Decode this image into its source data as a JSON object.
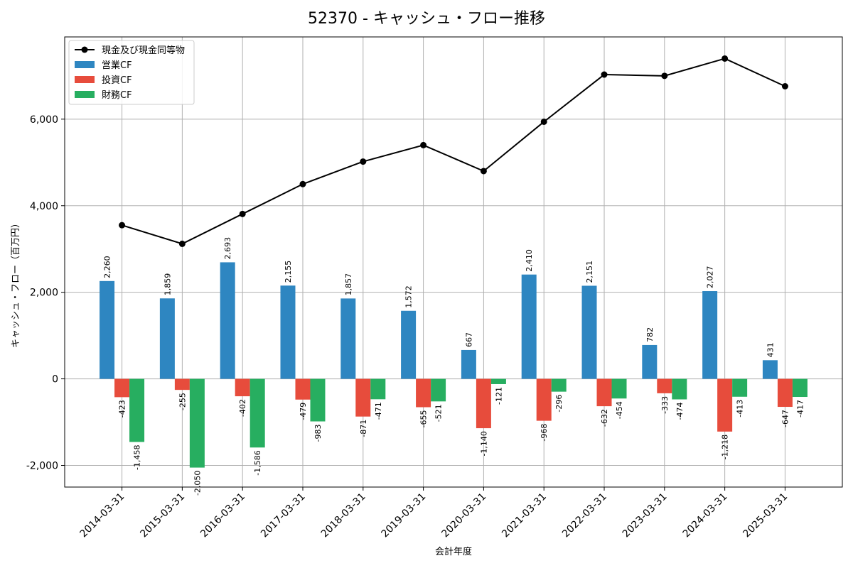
{
  "chart_data": {
    "type": "bar",
    "title": "52370 - キャッシュ・フロー推移",
    "xlabel": "会計年度",
    "ylabel": "キャッシュ・フロー（百万円）",
    "ylim": [
      -2500,
      7900
    ],
    "yticks": [
      -2000,
      0,
      2000,
      4000,
      6000
    ],
    "ytick_labels": [
      "-2,000",
      "0",
      "2,000",
      "4,000",
      "6,000"
    ],
    "grid": true,
    "legend_position": "top-left",
    "categories": [
      "2014-03-31",
      "2015-03-31",
      "2016-03-31",
      "2017-03-31",
      "2018-03-31",
      "2019-03-31",
      "2020-03-31",
      "2021-03-31",
      "2022-03-31",
      "2023-03-31",
      "2024-03-31",
      "2025-03-31"
    ],
    "series": [
      {
        "name": "営業CF",
        "kind": "bar",
        "color": "#2e86c1",
        "values": [
          2260,
          1859,
          2693,
          2155,
          1857,
          1572,
          667,
          2410,
          2151,
          782,
          2027,
          431
        ],
        "labels": [
          "2,260",
          "1,859",
          "2,693",
          "2,155",
          "1,857",
          "1,572",
          "667",
          "2,410",
          "2,151",
          "782",
          "2,027",
          "431"
        ]
      },
      {
        "name": "投資CF",
        "kind": "bar",
        "color": "#e74c3c",
        "values": [
          -423,
          -255,
          -402,
          -479,
          -871,
          -655,
          -1140,
          -968,
          -632,
          -333,
          -1218,
          -647
        ],
        "labels": [
          "-423",
          "-255",
          "-402",
          "-479",
          "-871",
          "-655",
          "-1,140",
          "-968",
          "-632",
          "-333",
          "-1,218",
          "-647"
        ]
      },
      {
        "name": "財務CF",
        "kind": "bar",
        "color": "#27ae60",
        "values": [
          -1458,
          -2050,
          -1586,
          -983,
          -471,
          -521,
          -121,
          -296,
          -454,
          -474,
          -413,
          -417
        ],
        "labels": [
          "-1,458",
          "-2,050",
          "-1,586",
          "-983",
          "-471",
          "-521",
          "-121",
          "-296",
          "-454",
          "-474",
          "-413",
          "-417"
        ]
      },
      {
        "name": "現金及び現金同等物",
        "kind": "line",
        "color": "#000000",
        "values": [
          3550,
          3120,
          3810,
          4500,
          5020,
          5400,
          4800,
          5940,
          7030,
          7000,
          7400,
          6760
        ]
      }
    ]
  }
}
